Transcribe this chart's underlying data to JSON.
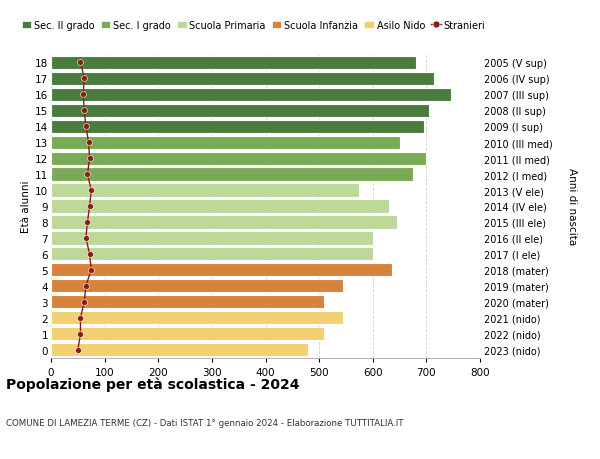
{
  "ages": [
    18,
    17,
    16,
    15,
    14,
    13,
    12,
    11,
    10,
    9,
    8,
    7,
    6,
    5,
    4,
    3,
    2,
    1,
    0
  ],
  "right_labels": [
    "2005 (V sup)",
    "2006 (IV sup)",
    "2007 (III sup)",
    "2008 (II sup)",
    "2009 (I sup)",
    "2010 (III med)",
    "2011 (II med)",
    "2012 (I med)",
    "2013 (V ele)",
    "2014 (IV ele)",
    "2015 (III ele)",
    "2016 (II ele)",
    "2017 (I ele)",
    "2018 (mater)",
    "2019 (mater)",
    "2020 (mater)",
    "2021 (nido)",
    "2022 (nido)",
    "2023 (nido)"
  ],
  "bar_values": [
    680,
    715,
    745,
    705,
    695,
    650,
    700,
    675,
    575,
    630,
    645,
    600,
    600,
    635,
    545,
    510,
    545,
    510,
    480
  ],
  "bar_colors": [
    "#4a7c3f",
    "#4a7c3f",
    "#4a7c3f",
    "#4a7c3f",
    "#4a7c3f",
    "#7aaa58",
    "#7aaa58",
    "#7aaa58",
    "#bdd99a",
    "#bdd99a",
    "#bdd99a",
    "#bdd99a",
    "#bdd99a",
    "#d9823a",
    "#d9823a",
    "#d9823a",
    "#f0d070",
    "#f0d070",
    "#f0d070"
  ],
  "stranieri_values": [
    55,
    62,
    60,
    62,
    65,
    70,
    72,
    68,
    75,
    72,
    68,
    65,
    72,
    75,
    65,
    62,
    55,
    55,
    50
  ],
  "stranieri_color": "#8b1a1a",
  "legend_labels": [
    "Sec. II grado",
    "Sec. I grado",
    "Scuola Primaria",
    "Scuola Infanzia",
    "Asilo Nido",
    "Stranieri"
  ],
  "legend_colors": [
    "#4a7c3f",
    "#7aaa58",
    "#bdd99a",
    "#d9823a",
    "#f0d070",
    "#8b1a1a"
  ],
  "title": "Popolazione per età scolastica - 2024",
  "subtitle": "COMUNE DI LAMEZIA TERME (CZ) - Dati ISTAT 1° gennaio 2024 - Elaborazione TUTTITALIA.IT",
  "ylabel_left": "Età alunni",
  "ylabel_right": "Anni di nascita",
  "xlim": [
    0,
    800
  ],
  "xticks": [
    0,
    100,
    200,
    300,
    400,
    500,
    600,
    700,
    800
  ],
  "background_color": "#ffffff",
  "grid_color": "#cccccc",
  "bar_edgecolor": "#ffffff",
  "bar_height": 0.82
}
